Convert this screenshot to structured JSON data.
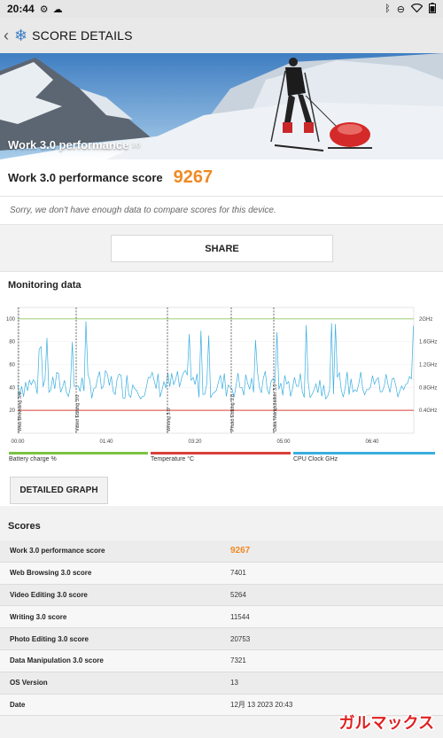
{
  "status": {
    "time": "20:44"
  },
  "appbar": {
    "title": "SCORE DETAILS"
  },
  "hero": {
    "title": "Work 3.0 performance",
    "version": "3.0"
  },
  "score": {
    "label": "Work 3.0 performance score",
    "value": "9267"
  },
  "compare_note": "Sorry, we don't have enough data to compare scores for this device.",
  "share_label": "SHARE",
  "monitoring": {
    "title": "Monitoring data",
    "legend": [
      "Battery charge %",
      "Temperature °C",
      "CPU Clock GHz"
    ],
    "colors": {
      "battery": "#7cc243",
      "temperature": "#d9403a",
      "cpu": "#3aaee0",
      "marker": "#444444"
    }
  },
  "detailed_graph_label": "DETAILED GRAPH",
  "scores_title": "Scores",
  "scores": [
    {
      "name": "Work 3.0 performance score",
      "value": "9267"
    },
    {
      "name": "Web Browsing 3.0 score",
      "value": "7401"
    },
    {
      "name": "Video Editing 3.0 score",
      "value": "5264"
    },
    {
      "name": "Writing 3.0 score",
      "value": "11544"
    },
    {
      "name": "Photo Editing 3.0 score",
      "value": "20753"
    },
    {
      "name": "Data Manipulation 3.0 score",
      "value": "7321"
    },
    {
      "name": "OS Version",
      "value": "13"
    },
    {
      "name": "Date",
      "value": "12月 13 2023 20:43"
    }
  ],
  "watermark": "ガルマックス",
  "chart_data": {
    "type": "line",
    "y_left_ticks": [
      "100",
      "80",
      "60",
      "40",
      "20"
    ],
    "y_right_ticks": [
      "2GHz",
      "1.6GHz",
      "1.2GHz",
      "0.8GHz",
      "0.4GHz"
    ],
    "x_ticks": [
      "00:00",
      "01:40",
      "03:20",
      "05:00",
      "06:40"
    ],
    "markers": [
      "Web Browsing 3.0",
      "Video Editing 3.0",
      "Writing 3.0",
      "Photo Editing 3.0",
      "Data Manipulation 3.0"
    ],
    "series": [
      {
        "name": "Battery charge %",
        "values": [
          100,
          100
        ]
      },
      {
        "name": "Temperature °C",
        "values": [
          20,
          20
        ]
      },
      {
        "name": "CPU Clock GHz"
      }
    ]
  }
}
